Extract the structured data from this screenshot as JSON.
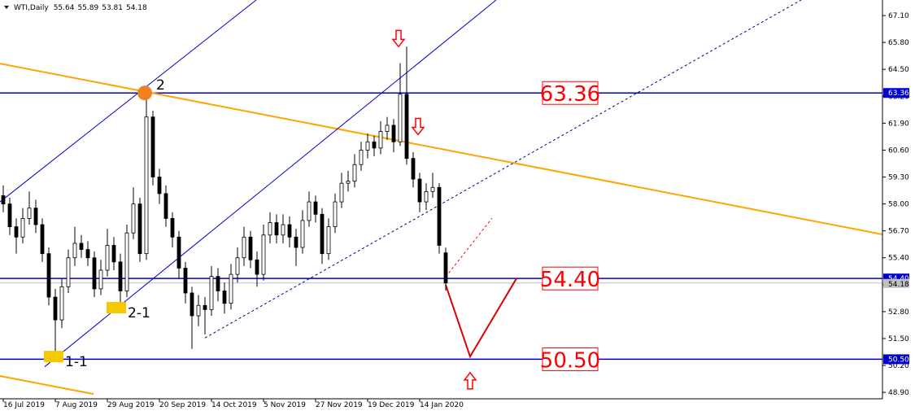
{
  "chart_data": {
    "type": "candlestick",
    "title": "WTI,Daily",
    "x": [
      0,
      2,
      4,
      6,
      8,
      10,
      12,
      14,
      16,
      18,
      20,
      22,
      24,
      26,
      28,
      30,
      32,
      34,
      36,
      38,
      40,
      42,
      44,
      46,
      48,
      50,
      52,
      54,
      56,
      58,
      60,
      62,
      64,
      66,
      68,
      70,
      72,
      74,
      76,
      78,
      80,
      82,
      84,
      86,
      88,
      90,
      92,
      94,
      96,
      98,
      100,
      102,
      104,
      106,
      108,
      110,
      112,
      114,
      116,
      118,
      120,
      122,
      124,
      126,
      128,
      130,
      132,
      134,
      136
    ],
    "open": [
      58.4,
      58.0,
      56.9,
      56.4,
      57.3,
      57.8,
      57.0,
      55.6,
      53.5,
      52.4,
      54.0,
      55.4,
      56.1,
      55.8,
      55.4,
      53.9,
      54.8,
      56.0,
      55.2,
      53.8,
      56.6,
      58.0,
      55.6,
      62.2,
      59.3,
      58.5,
      57.3,
      56.4,
      54.9,
      53.7,
      52.6,
      53.1,
      52.9,
      54.5,
      53.8,
      53.2,
      54.6,
      55.4,
      56.4,
      55.3,
      54.6,
      56.5,
      57.1,
      56.5,
      57.0,
      56.4,
      55.9,
      57.2,
      58.1,
      57.5,
      55.6,
      56.9,
      58.1,
      59.0,
      59.1,
      59.9,
      60.6,
      61.0,
      60.7,
      61.5,
      61.8,
      61.0,
      63.3,
      60.2,
      59.2,
      58.1,
      58.6,
      58.8,
      55.64
    ],
    "high": [
      58.9,
      58.3,
      57.3,
      57.8,
      58.6,
      58.2,
      57.3,
      55.9,
      53.9,
      54.4,
      55.8,
      56.9,
      56.5,
      56.2,
      55.7,
      55.3,
      56.8,
      56.4,
      55.6,
      57.0,
      58.8,
      58.3,
      63.4,
      62.5,
      59.7,
      58.9,
      57.6,
      56.7,
      55.2,
      54.0,
      53.6,
      53.5,
      55.0,
      54.9,
      54.2,
      55.1,
      55.9,
      56.9,
      56.7,
      55.7,
      57.0,
      57.6,
      57.5,
      57.5,
      57.4,
      56.8,
      57.7,
      58.6,
      58.4,
      57.8,
      57.3,
      58.5,
      59.5,
      59.6,
      60.4,
      61.0,
      61.4,
      61.3,
      62.0,
      62.2,
      62.1,
      64.8,
      65.6,
      60.5,
      59.5,
      59.0,
      59.5,
      59.0,
      55.89
    ],
    "low": [
      57.6,
      56.5,
      55.6,
      56.1,
      57.0,
      56.6,
      55.2,
      53.1,
      50.7,
      52.0,
      53.7,
      55.0,
      55.4,
      55.0,
      53.5,
      53.6,
      54.5,
      54.8,
      52.9,
      53.5,
      56.3,
      55.2,
      55.3,
      58.9,
      58.0,
      56.9,
      55.9,
      54.4,
      53.2,
      51.0,
      52.1,
      51.7,
      52.6,
      53.3,
      52.7,
      52.9,
      54.2,
      55.0,
      54.9,
      54.0,
      54.3,
      56.1,
      56.1,
      56.1,
      55.9,
      55.0,
      55.6,
      56.9,
      57.1,
      55.1,
      55.3,
      56.6,
      57.8,
      58.6,
      58.8,
      59.6,
      60.2,
      60.3,
      60.4,
      61.1,
      60.5,
      60.8,
      59.9,
      58.8,
      57.6,
      57.7,
      58.3,
      55.6,
      53.81
    ],
    "close": [
      58.0,
      56.9,
      56.4,
      57.3,
      57.8,
      57.0,
      55.6,
      53.5,
      52.4,
      54.0,
      55.4,
      56.1,
      55.8,
      55.4,
      53.9,
      54.8,
      56.0,
      55.2,
      53.8,
      56.6,
      58.0,
      55.6,
      62.2,
      59.3,
      58.5,
      57.3,
      56.4,
      54.9,
      53.7,
      52.6,
      53.1,
      52.9,
      54.5,
      53.8,
      53.2,
      54.6,
      55.4,
      56.4,
      55.3,
      54.6,
      56.5,
      57.1,
      56.5,
      57.0,
      56.4,
      55.9,
      57.2,
      58.1,
      57.5,
      55.6,
      56.9,
      58.1,
      59.0,
      59.1,
      59.9,
      60.6,
      61.0,
      60.7,
      61.5,
      61.8,
      61.0,
      63.3,
      60.2,
      59.2,
      58.1,
      58.6,
      58.8,
      56.0,
      54.18
    ],
    "up_color": "#ffffff",
    "down_color": "#000000",
    "wick_color": "#000000",
    "xlim": [
      -1,
      270.25
    ],
    "ylim": [
      48.59,
      67.85
    ],
    "xticks": [
      {
        "value": 0,
        "label": "16 Jul 2019"
      },
      {
        "value": 16,
        "label": "7 Aug 2019"
      },
      {
        "value": 32,
        "label": "29 Aug 2019"
      },
      {
        "value": 48,
        "label": "20 Sep 2019"
      },
      {
        "value": 64,
        "label": "14 Oct 2019"
      },
      {
        "value": 80,
        "label": "5 Nov 2019"
      },
      {
        "value": 96,
        "label": "27 Nov 2019"
      },
      {
        "value": 112,
        "label": "19 Dec 2019"
      },
      {
        "value": 128,
        "label": "14 Jan 2020"
      }
    ],
    "yticks": [
      {
        "value": 67.1,
        "label": "67.10"
      },
      {
        "value": 65.8,
        "label": "65.80"
      },
      {
        "value": 64.5,
        "label": "64.50"
      },
      {
        "value": 63.2,
        "label": "63.20"
      },
      {
        "value": 61.9,
        "label": "61.90"
      },
      {
        "value": 60.6,
        "label": "60.60"
      },
      {
        "value": 59.3,
        "label": "59.30"
      },
      {
        "value": 58.0,
        "label": "58.00"
      },
      {
        "value": 56.7,
        "label": "56.70"
      },
      {
        "value": 55.4,
        "label": "55.40"
      },
      {
        "value": 54.1,
        "label": "54.10"
      },
      {
        "value": 52.8,
        "label": "52.80"
      },
      {
        "value": 51.5,
        "label": "51.50"
      },
      {
        "value": 50.2,
        "label": "50.20"
      },
      {
        "value": 48.9,
        "label": "48.90"
      }
    ],
    "levels": [
      {
        "value": 63.36,
        "label": "63.36",
        "color": "#0000cc"
      },
      {
        "value": 54.4,
        "label": "54.40",
        "color": "#0000cc"
      },
      {
        "value": 50.5,
        "label": "50.50",
        "color": "#0000cc"
      }
    ],
    "last_price_color": "#c0c0c0",
    "trendlines": [
      {
        "points": [
          [
            -1,
            64.78
          ],
          [
            270.25,
            56.53
          ]
        ],
        "color": "#ffa500",
        "width": 2,
        "dashed": false
      },
      {
        "points": [
          [
            -1,
            49.69
          ],
          [
            27.75,
            48.82
          ]
        ],
        "color": "#ffa500",
        "width": 2,
        "dashed": false
      },
      {
        "points": [
          [
            12.75,
            50.14
          ],
          [
            151.5,
            67.85
          ]
        ],
        "color": "#0000cc",
        "width": 1,
        "dashed": false
      },
      {
        "points": [
          [
            -1,
            58.1
          ],
          [
            77.75,
            67.85
          ]
        ],
        "color": "#0000cc",
        "width": 1,
        "dashed": false
      },
      {
        "points": [
          [
            62,
            51.53
          ],
          [
            245.25,
            67.85
          ]
        ],
        "color": "#000080",
        "width": 1,
        "dashed": true
      },
      {
        "points": [
          [
            136,
            54.48
          ],
          [
            150.25,
            57.31
          ]
        ],
        "color": "#ff0000",
        "width": 1,
        "dashed": true
      },
      {
        "points": [
          [
            136,
            54.09
          ],
          [
            143.5,
            50.63
          ],
          [
            157.75,
            54.4
          ]
        ],
        "color": "#dd0000",
        "width": 2,
        "dashed": false
      }
    ],
    "markers": [
      {
        "shape": "circle",
        "x": 43.5,
        "y": 63.36,
        "color": "#f08020",
        "text": "2"
      },
      {
        "shape": "square",
        "x": 34.75,
        "y": 52.99,
        "color": "#f5c800",
        "text": "2-1"
      },
      {
        "shape": "square",
        "x": 15.5,
        "y": 50.63,
        "color": "#f5c800",
        "text": "1-1"
      }
    ],
    "arrows": [
      {
        "x": 121.5,
        "y": 65.95,
        "dir": "down",
        "color": "#ff0000"
      },
      {
        "x": 127.5,
        "y": 61.7,
        "dir": "down",
        "color": "#ff0000"
      },
      {
        "x": 143.5,
        "y": 49.5,
        "dir": "up",
        "color": "#ff0000"
      }
    ]
  }
}
